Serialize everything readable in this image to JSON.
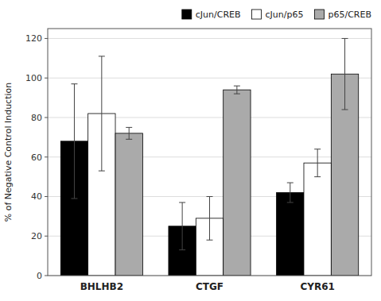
{
  "chart_data": {
    "type": "bar",
    "categories": [
      "BHLHB2",
      "CTGF",
      "CYR61"
    ],
    "series": [
      {
        "name": "cJun/CREB",
        "color": "#000000",
        "values": [
          68,
          25,
          42
        ],
        "errors": [
          29,
          12,
          5
        ]
      },
      {
        "name": "cJun/p65",
        "color": "#ffffff",
        "values": [
          82,
          29,
          57
        ],
        "errors": [
          29,
          11,
          7
        ]
      },
      {
        "name": "p65/CREB",
        "color": "#aaaaaa",
        "values": [
          72,
          94,
          102
        ],
        "errors": [
          3,
          2,
          18
        ]
      }
    ],
    "y_label": "% of Negative Control Induction",
    "ylim": [
      0,
      125
    ],
    "yticks": [
      0,
      20,
      40,
      60,
      80,
      100,
      120
    ],
    "grid": true,
    "legend": "upper right"
  }
}
